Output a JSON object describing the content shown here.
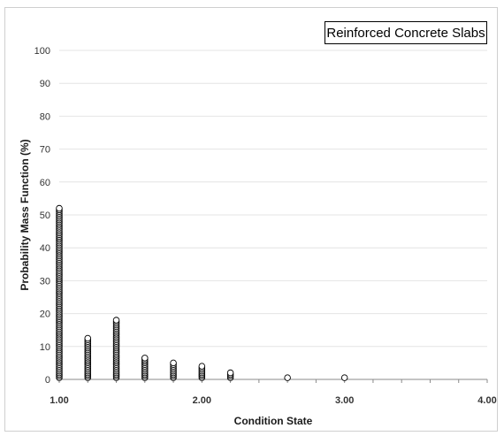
{
  "chart_data": {
    "type": "scatter",
    "title": "",
    "xlabel": "Condition State",
    "ylabel": "Probability Mass Function (%)",
    "xlim": [
      1.0,
      4.0
    ],
    "ylim": [
      0,
      100
    ],
    "x_ticks": [
      1.0,
      2.0,
      3.0,
      4.0
    ],
    "x_tick_labels": [
      "1.00",
      "2.00",
      "3.00",
      "4.00"
    ],
    "y_ticks": [
      0,
      10,
      20,
      30,
      40,
      50,
      60,
      70,
      80,
      90,
      100
    ],
    "y_tick_labels": [
      "0",
      "10",
      "20",
      "30",
      "40",
      "50",
      "60",
      "70",
      "80",
      "90",
      "100"
    ],
    "grid": "horizontal",
    "legend": {
      "placement": "top-right",
      "entries": [
        "Reinforced Concrete Slabs"
      ]
    },
    "series": [
      {
        "name": "Reinforced Concrete Slabs",
        "marker": "open-circle",
        "columns": [
          {
            "x": 1.0,
            "y_max": 52
          },
          {
            "x": 1.2,
            "y_max": 12.5
          },
          {
            "x": 1.4,
            "y_max": 18
          },
          {
            "x": 1.6,
            "y_max": 6.5
          },
          {
            "x": 1.8,
            "y_max": 5
          },
          {
            "x": 2.0,
            "y_max": 4
          },
          {
            "x": 2.2,
            "y_max": 2
          },
          {
            "x": 2.6,
            "y_max": 0.5
          },
          {
            "x": 3.0,
            "y_max": 0.5
          }
        ]
      }
    ]
  },
  "colors": {
    "gridline": "#e4e4e4",
    "axis": "#8a8a8a",
    "marker_stroke": "#000000",
    "marker_fill": "#ffffff"
  }
}
